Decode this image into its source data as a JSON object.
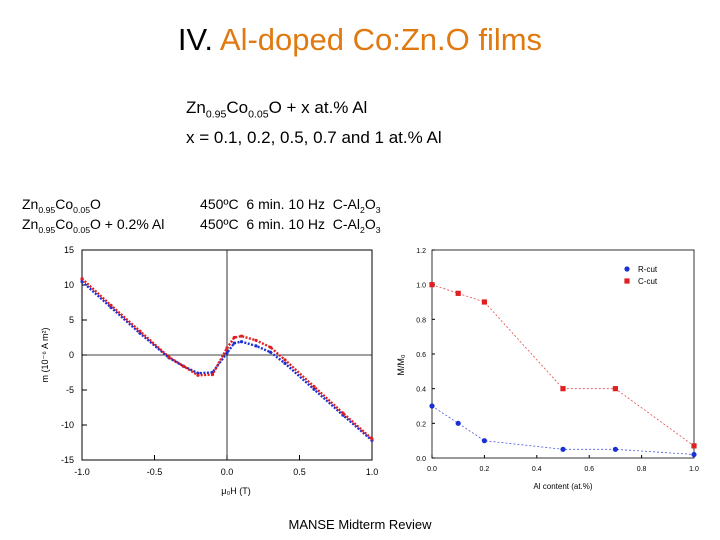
{
  "slide": {
    "title_prefix": "IV. ",
    "title_accent": "Al-doped Co:Zn.O films",
    "formula_line1": {
      "base1": "Zn",
      "sub1": "0.95",
      "base2": "Co",
      "sub2": "0.05",
      "rest": "O + x at.% Al"
    },
    "formula_line2": "x = 0.1, 0.2, 0.5, 0.7 and 1 at.% Al",
    "legend": [
      {
        "a": "Zn",
        "s1": "0.95",
        "b": "Co",
        "s2": "0.05",
        "c": "O",
        "cond": "450ºC  6 min. 10 Hz  C-Al",
        "s3": "2",
        "d": "O",
        "s4": "3"
      },
      {
        "a": "Zn",
        "s1": "0.95",
        "b": "Co",
        "s2": "0.05",
        "c": "O + 0.2% Al",
        "cond": "450ºC  6 min. 10 Hz  C-Al",
        "s3": "2",
        "d": "O",
        "s4": "3"
      }
    ],
    "footer": "MANSE Midterm Review",
    "colors": {
      "accent": "#e07a10",
      "blue": "#1a2fd6",
      "red": "#e02020"
    }
  },
  "chart_data": [
    {
      "type": "line",
      "xlabel": "μ₀H (T)",
      "ylabel": "m (10⁻⁶ A m²)",
      "xlim": [
        -1.0,
        1.0
      ],
      "ylim": [
        -15,
        15
      ],
      "xticks": [
        "-1.0",
        "-0.5",
        "0.0",
        "0.5",
        "1.0"
      ],
      "yticks": [
        "15",
        "10",
        "5",
        "0",
        "-5",
        "-10",
        "-15"
      ],
      "series": [
        {
          "color": "#1a2fd6",
          "x": [
            -1.0,
            -0.8,
            -0.6,
            -0.4,
            -0.3,
            -0.2,
            -0.1,
            0.0,
            0.05,
            0.1,
            0.2,
            0.3,
            0.4,
            0.6,
            0.8,
            1.0
          ],
          "y": [
            10.5,
            6.8,
            3.1,
            -0.4,
            -1.6,
            -2.6,
            -2.5,
            0.3,
            1.7,
            1.9,
            1.3,
            0.4,
            -1.2,
            -4.9,
            -8.6,
            -12.2
          ]
        },
        {
          "color": "#e02020",
          "x": [
            -1.0,
            -0.8,
            -0.6,
            -0.4,
            -0.3,
            -0.2,
            -0.1,
            0.0,
            0.05,
            0.1,
            0.2,
            0.3,
            0.4,
            0.6,
            0.8,
            1.0
          ],
          "y": [
            10.9,
            7.1,
            3.4,
            -0.3,
            -1.6,
            -2.9,
            -2.8,
            1.0,
            2.5,
            2.7,
            2.1,
            1.1,
            -0.7,
            -4.5,
            -8.3,
            -12.0
          ]
        }
      ]
    },
    {
      "type": "scatter",
      "xlabel": "Al content (at.%)",
      "ylabel": "M/M₀",
      "xlim": [
        0.0,
        1.0
      ],
      "ylim": [
        0.0,
        1.2
      ],
      "xticks": [
        "0.0",
        "0.2",
        "0.4",
        "0.6",
        "0.8",
        "1.0"
      ],
      "yticks": [
        "1.2",
        "1.0",
        "0.8",
        "0.6",
        "0.4",
        "0.2",
        "0.0"
      ],
      "legend_position": "top-right",
      "series": [
        {
          "name": "R-cut",
          "color": "#1a2fd6",
          "x": [
            0.0,
            0.1,
            0.2,
            0.5,
            0.7,
            1.0
          ],
          "y": [
            0.3,
            0.2,
            0.1,
            0.05,
            0.05,
            0.02
          ]
        },
        {
          "name": "C-cut",
          "color": "#e02020",
          "x": [
            0.0,
            0.1,
            0.2,
            0.5,
            0.7,
            1.0
          ],
          "y": [
            1.0,
            0.95,
            0.9,
            0.4,
            0.4,
            0.07
          ]
        }
      ]
    }
  ]
}
